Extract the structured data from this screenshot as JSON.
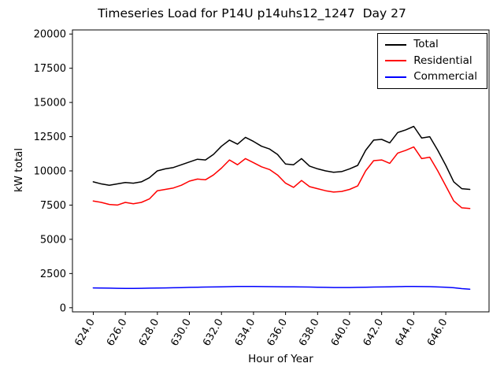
{
  "chart_data": {
    "type": "line",
    "title": "Timeseries Load for P14U p14uhs12_1247  Day 27",
    "xlabel": "Hour of Year",
    "ylabel": "kW total",
    "grid": false,
    "legend_position": "upper right",
    "xlim": [
      622.7,
      648.7
    ],
    "ylim": [
      -300,
      20300
    ],
    "x_tick_values": [
      624,
      626,
      628,
      630,
      632,
      634,
      636,
      638,
      640,
      642,
      644,
      646
    ],
    "x_tick_labels": [
      "624.0",
      "626.0",
      "628.0",
      "630.0",
      "632.0",
      "634.0",
      "636.0",
      "638.0",
      "640.0",
      "642.0",
      "644.0",
      "646.0"
    ],
    "y_tick_values": [
      0,
      2500,
      5000,
      7500,
      10000,
      12500,
      15000,
      17500,
      20000
    ],
    "x": [
      624.0,
      624.5,
      625.0,
      625.5,
      626.0,
      626.5,
      627.0,
      627.5,
      628.0,
      628.5,
      629.0,
      629.5,
      630.0,
      630.5,
      631.0,
      631.5,
      632.0,
      632.5,
      633.0,
      633.5,
      634.0,
      634.5,
      635.0,
      635.5,
      636.0,
      636.5,
      637.0,
      637.5,
      638.0,
      638.5,
      639.0,
      639.5,
      640.0,
      640.5,
      641.0,
      641.5,
      642.0,
      642.5,
      643.0,
      643.5,
      644.0,
      644.5,
      645.0,
      645.5,
      646.0,
      646.5,
      647.0,
      647.5
    ],
    "series": [
      {
        "name": "Total",
        "color": "#000000",
        "values": [
          9200,
          9050,
          8950,
          9050,
          9150,
          9100,
          9200,
          9500,
          10000,
          10150,
          10250,
          10450,
          10650,
          10850,
          10800,
          11200,
          11800,
          12250,
          11950,
          12450,
          12150,
          11800,
          11600,
          11200,
          10500,
          10450,
          10900,
          10350,
          10150,
          10000,
          9900,
          9950,
          10150,
          10400,
          11500,
          12250,
          12300,
          12050,
          12800,
          13000,
          13250,
          12400,
          12500,
          11500,
          10400,
          9200,
          8700,
          8650
        ]
      },
      {
        "name": "Residential",
        "color": "#ff0000",
        "values": [
          7800,
          7700,
          7550,
          7500,
          7700,
          7600,
          7700,
          7950,
          8550,
          8650,
          8750,
          8950,
          9250,
          9400,
          9350,
          9700,
          10200,
          10800,
          10450,
          10900,
          10600,
          10300,
          10100,
          9700,
          9100,
          8800,
          9300,
          8850,
          8700,
          8550,
          8450,
          8500,
          8650,
          8900,
          10000,
          10750,
          10800,
          10550,
          11300,
          11500,
          11750,
          10900,
          11000,
          10000,
          8900,
          7800,
          7300,
          7250
        ]
      },
      {
        "name": "Commercial",
        "color": "#0000ff",
        "values": [
          1450,
          1440,
          1430,
          1420,
          1410,
          1410,
          1420,
          1430,
          1440,
          1450,
          1460,
          1470,
          1490,
          1500,
          1510,
          1520,
          1530,
          1540,
          1550,
          1550,
          1550,
          1545,
          1540,
          1535,
          1530,
          1525,
          1520,
          1510,
          1500,
          1490,
          1480,
          1480,
          1480,
          1490,
          1500,
          1510,
          1520,
          1530,
          1540,
          1550,
          1550,
          1545,
          1540,
          1520,
          1500,
          1460,
          1400,
          1360
        ]
      }
    ]
  }
}
